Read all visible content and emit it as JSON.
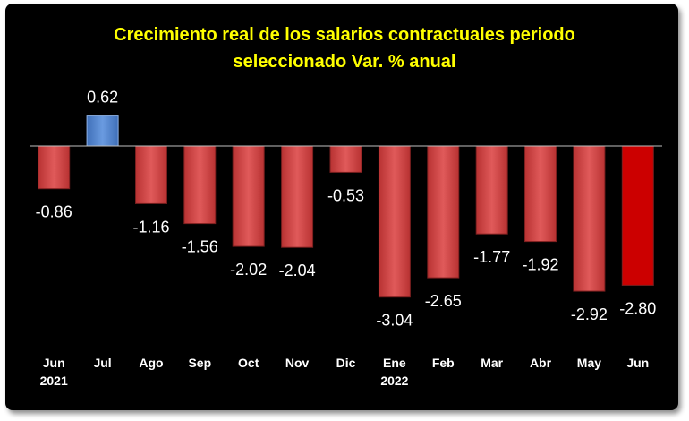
{
  "colors": {
    "background": "#000000",
    "title": "#ffff00",
    "positive_bar": "#4f87d6",
    "negative_bar": "#d24a4a",
    "highlight_bar": "#cc0000",
    "text": "#ffffff",
    "axis": "#bfbfbf"
  },
  "chart_data": {
    "type": "bar",
    "title_line1": "Crecimiento real de los salarios contractuales periodo",
    "title_line2": "seleccionado Var. % anual",
    "categories": [
      {
        "month": "Jun",
        "year": "2021"
      },
      {
        "month": "Jul",
        "year": ""
      },
      {
        "month": "Ago",
        "year": ""
      },
      {
        "month": "Sep",
        "year": ""
      },
      {
        "month": "Oct",
        "year": ""
      },
      {
        "month": "Nov",
        "year": ""
      },
      {
        "month": "Dic",
        "year": ""
      },
      {
        "month": "Ene",
        "year": "2022"
      },
      {
        "month": "Feb",
        "year": ""
      },
      {
        "month": "Mar",
        "year": ""
      },
      {
        "month": "Abr",
        "year": ""
      },
      {
        "month": "May",
        "year": ""
      },
      {
        "month": "Jun",
        "year": ""
      }
    ],
    "values": [
      -0.86,
      0.62,
      -1.16,
      -1.56,
      -2.02,
      -2.04,
      -0.53,
      -3.04,
      -2.65,
      -1.77,
      -1.92,
      -2.92,
      -2.8
    ],
    "value_labels": [
      "-0.86",
      "0.62",
      "-1.16",
      "-1.56",
      "-2.02",
      "-2.04",
      "-0.53",
      "-3.04",
      "-2.65",
      "-1.77",
      "-1.92",
      "-2.92",
      "-2.80"
    ],
    "highlight_index": 12,
    "ylim": [
      -3.04,
      0.62
    ],
    "grid": false,
    "legend": "none"
  }
}
